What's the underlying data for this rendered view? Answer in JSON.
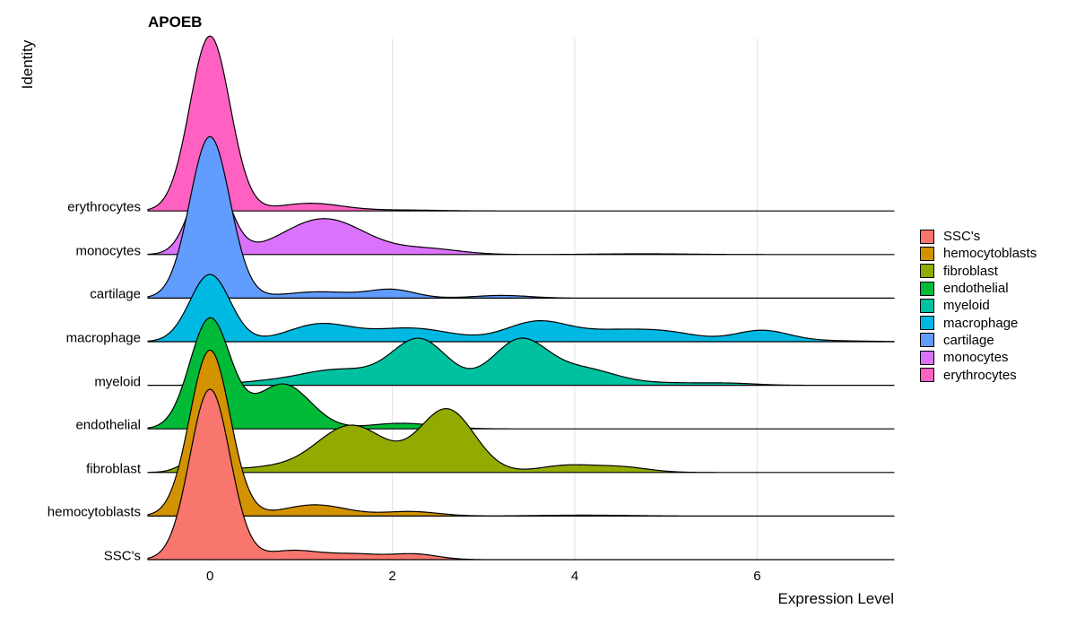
{
  "chart_data": {
    "type": "ridgeline",
    "title": "APOEB",
    "xlabel": "Expression Level",
    "ylabel": "Identity",
    "xlim": [
      -0.68,
      7.5
    ],
    "xticks": [
      0,
      2,
      4,
      6
    ],
    "grid": "vertical",
    "legend": {
      "position": "right",
      "entries": [
        {
          "label": "SSC's",
          "color": "#F8766D"
        },
        {
          "label": "hemocytoblasts",
          "color": "#D39200"
        },
        {
          "label": "fibroblast",
          "color": "#93AA00"
        },
        {
          "label": "endothelial",
          "color": "#00BA38"
        },
        {
          "label": "myeloid",
          "color": "#00C19F"
        },
        {
          "label": "macrophage",
          "color": "#00B9E3"
        },
        {
          "label": "cartilage",
          "color": "#619CFF"
        },
        {
          "label": "monocytes",
          "color": "#DB72FB"
        },
        {
          "label": "erythrocytes",
          "color": "#FF61C3"
        }
      ]
    },
    "series": [
      {
        "name": "SSC's",
        "color": "#F8766D",
        "peaks": [
          [
            0,
            3.8,
            0.22
          ],
          [
            0.9,
            0.2,
            0.3
          ],
          [
            1.6,
            0.12,
            0.3
          ],
          [
            2.25,
            0.12,
            0.25
          ]
        ]
      },
      {
        "name": "hemocytoblasts",
        "color": "#D39200",
        "peaks": [
          [
            0,
            3.7,
            0.22
          ],
          [
            1.15,
            0.25,
            0.35
          ],
          [
            2.2,
            0.1,
            0.3
          ],
          [
            4.1,
            0.02,
            0.5
          ]
        ]
      },
      {
        "name": "fibroblast",
        "color": "#93AA00",
        "peaks": [
          [
            -0.1,
            0.35,
            0.18
          ],
          [
            0.6,
            0.1,
            0.35
          ],
          [
            1.55,
            1.05,
            0.38
          ],
          [
            2.6,
            1.4,
            0.3
          ],
          [
            3.9,
            0.15,
            0.3
          ],
          [
            4.5,
            0.12,
            0.3
          ]
        ]
      },
      {
        "name": "endothelial",
        "color": "#00BA38",
        "peaks": [
          [
            0,
            2.45,
            0.22
          ],
          [
            0.8,
            1.0,
            0.3
          ],
          [
            2.0,
            0.1,
            0.3
          ],
          [
            2.4,
            0.05,
            0.3
          ]
        ]
      },
      {
        "name": "myeloid",
        "color": "#00C19F",
        "peaks": [
          [
            0.5,
            0.05,
            0.3
          ],
          [
            1.4,
            0.35,
            0.45
          ],
          [
            2.3,
            1.0,
            0.3
          ],
          [
            3.4,
            1.0,
            0.3
          ],
          [
            4.1,
            0.35,
            0.35
          ],
          [
            5.0,
            0.05,
            0.4
          ],
          [
            5.7,
            0.04,
            0.3
          ]
        ]
      },
      {
        "name": "macrophage",
        "color": "#00B9E3",
        "peaks": [
          [
            0,
            1.5,
            0.22
          ],
          [
            1.2,
            0.38,
            0.35
          ],
          [
            2.2,
            0.3,
            0.45
          ],
          [
            3.6,
            0.45,
            0.35
          ],
          [
            4.4,
            0.2,
            0.35
          ],
          [
            5.0,
            0.2,
            0.35
          ],
          [
            6.05,
            0.25,
            0.3
          ],
          [
            6.8,
            0.02,
            0.4
          ]
        ]
      },
      {
        "name": "cartilage",
        "color": "#619CFF",
        "peaks": [
          [
            0,
            3.6,
            0.22
          ],
          [
            1.2,
            0.14,
            0.4
          ],
          [
            2.0,
            0.18,
            0.25
          ],
          [
            3.2,
            0.06,
            0.3
          ]
        ]
      },
      {
        "name": "monocytes",
        "color": "#DB72FB",
        "peaks": [
          [
            0,
            1.9,
            0.2
          ],
          [
            1.25,
            0.8,
            0.45
          ],
          [
            2.4,
            0.12,
            0.35
          ],
          [
            4.5,
            0.01,
            0.4
          ],
          [
            5.0,
            0.01,
            0.4
          ]
        ]
      },
      {
        "name": "erythrocytes",
        "color": "#FF61C3",
        "peaks": [
          [
            0,
            3.9,
            0.22
          ],
          [
            1.1,
            0.17,
            0.35
          ],
          [
            2.1,
            0.02,
            0.4
          ]
        ]
      }
    ]
  }
}
